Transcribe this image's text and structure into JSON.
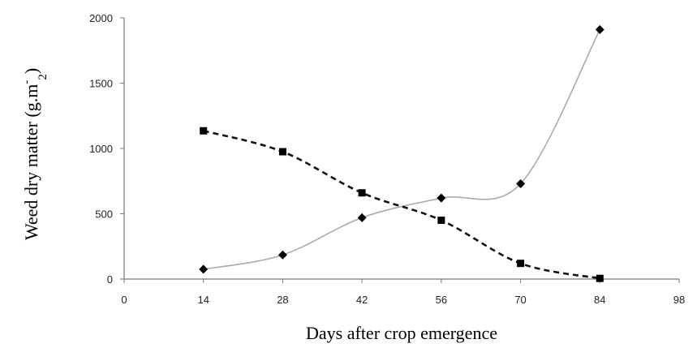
{
  "chart_data": {
    "type": "line",
    "title": "",
    "xlabel": "Days after crop emergence",
    "ylabel_main": "Weed dry matter (g.m",
    "ylabel_sup": "-",
    "ylabel_sub": "2",
    "ylabel_close": ")",
    "xlim": [
      0,
      98
    ],
    "ylim": [
      0,
      2000
    ],
    "xticks": [
      "0",
      "14",
      "28",
      "42",
      "56",
      "70",
      "84",
      "98"
    ],
    "yticks": [
      "0",
      "500",
      "1000",
      "1500",
      "2000"
    ],
    "grid": false,
    "legend": "none",
    "series": [
      {
        "marker": "diamond",
        "line_style": "solid-smooth",
        "color": "#aaaaaa",
        "x": [
          14,
          28,
          42,
          56,
          70,
          84
        ],
        "y": [
          75,
          185,
          470,
          620,
          730,
          1910
        ]
      },
      {
        "marker": "square",
        "line_style": "dashed-smooth",
        "color": "#111111",
        "x": [
          14,
          28,
          42,
          56,
          70,
          84
        ],
        "y": [
          1135,
          975,
          660,
          450,
          120,
          5
        ]
      }
    ]
  }
}
